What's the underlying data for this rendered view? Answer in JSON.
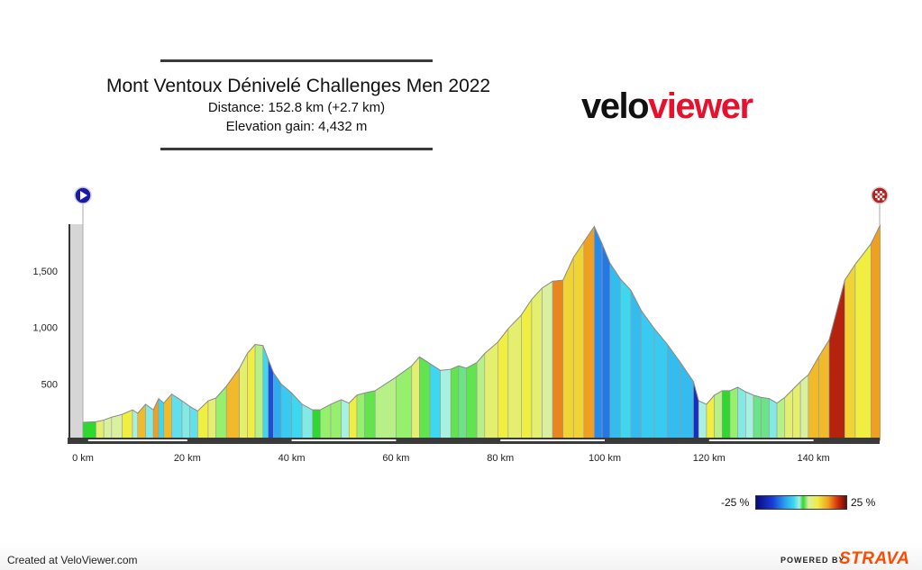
{
  "header": {
    "title": "Mont Ventoux Dénivelé Challenges Men 2022",
    "distance": "Distance: 152.8 km (+2.7 km)",
    "elevation_gain": "Elevation gain: 4,432 m"
  },
  "logo": {
    "part1": "velo",
    "part2": "viewer",
    "color1": "#111111",
    "color2": "#e8112d"
  },
  "legend": {
    "min_label": "-25 %",
    "max_label": "25 %"
  },
  "footer": {
    "created": "Created at VeloViewer.com",
    "powered": "POWERED BY",
    "strava": "STRAVA"
  },
  "markers": {
    "start": "play-icon",
    "finish": "checkered-flag-icon"
  },
  "chart_data": {
    "type": "area",
    "xlabel": "",
    "ylabel": "",
    "xlim": [
      0,
      155
    ],
    "ylim": [
      0,
      1950
    ],
    "x_ticks": [
      0,
      20,
      40,
      60,
      80,
      100,
      120,
      140
    ],
    "x_tick_labels": [
      "0 km",
      "20 km",
      "40 km",
      "60 km",
      "80 km",
      "100 km",
      "120 km",
      "140 km"
    ],
    "y_ticks": [
      500,
      1000,
      1500
    ],
    "y_tick_labels": [
      "500",
      "1,000",
      "1,500"
    ],
    "grid": false,
    "series": [
      {
        "x": [
          0,
          2.5,
          4,
          5.5,
          7.5,
          9.5,
          10.5,
          12,
          13.5,
          14.5,
          15.5,
          17,
          19,
          20.5,
          22,
          24,
          25.5,
          27.5,
          30,
          31.5,
          33,
          34.5,
          35.5,
          36.5,
          38,
          40,
          42,
          44,
          45.5,
          47.5,
          49.5,
          51,
          52.5,
          54,
          56,
          60,
          63,
          64.5,
          66.5,
          68.5,
          70.5,
          72,
          73.5,
          75.5,
          77,
          79.5,
          81.5,
          84,
          86,
          88,
          90,
          92,
          94,
          96,
          98,
          99.5,
          101,
          103,
          105,
          107,
          109.5,
          112,
          114.5,
          117,
          118,
          119.5,
          121,
          122.5,
          124,
          125.5,
          127,
          128.5,
          130,
          131.5,
          133,
          134.5,
          136,
          137.5,
          139,
          141,
          143,
          146,
          148,
          151,
          152.8
        ],
        "y": [
          160,
          165,
          180,
          205,
          230,
          270,
          240,
          320,
          270,
          370,
          330,
          410,
          350,
          300,
          260,
          350,
          375,
          480,
          640,
          770,
          850,
          840,
          720,
          600,
          500,
          420,
          320,
          270,
          270,
          320,
          360,
          330,
          400,
          420,
          440,
          560,
          660,
          740,
          680,
          620,
          630,
          660,
          640,
          690,
          770,
          870,
          990,
          1110,
          1250,
          1350,
          1410,
          1420,
          1620,
          1760,
          1895,
          1740,
          1570,
          1430,
          1330,
          1150,
          990,
          850,
          690,
          520,
          350,
          320,
          400,
          440,
          440,
          470,
          430,
          400,
          380,
          370,
          330,
          380,
          450,
          520,
          580,
          740,
          890,
          1420,
          1560,
          1740,
          1910
        ]
      }
    ],
    "segment_grades": [
      0,
      5,
      4,
      4,
      6,
      -2,
      8,
      -3,
      9,
      -5,
      8,
      -4,
      -3,
      -4,
      6,
      5,
      2,
      8,
      5,
      6,
      3,
      -5,
      -13,
      -8,
      -6,
      -5,
      -3,
      0,
      2,
      2,
      -2,
      6,
      2,
      1,
      3,
      2,
      5,
      1,
      -5,
      -2,
      1,
      -1,
      1,
      3,
      5,
      6,
      5,
      6,
      5,
      4,
      10,
      7,
      7,
      9,
      -10,
      -11,
      -7,
      -5,
      -7,
      -6,
      -6,
      -7,
      -7,
      -17,
      -2,
      6,
      3,
      0,
      2,
      -3,
      -2,
      -1,
      -1,
      -3,
      3,
      5,
      5,
      4,
      8,
      8,
      17,
      7,
      6,
      9
    ]
  }
}
